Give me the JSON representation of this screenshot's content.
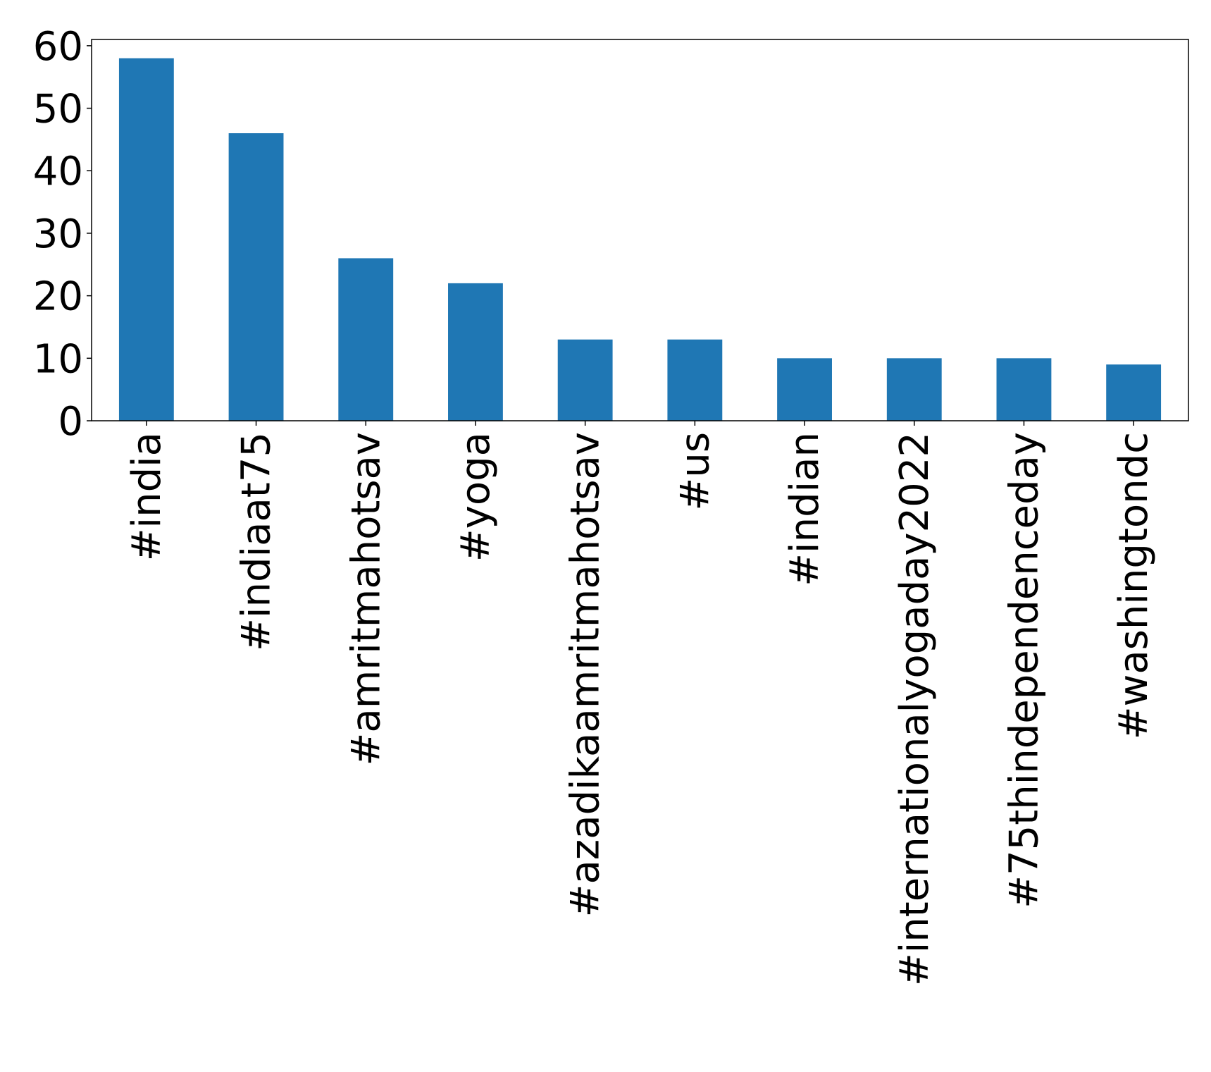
{
  "chart_data": {
    "type": "bar",
    "categories": [
      "#india",
      "#indiaat75",
      "#amritmahotsav",
      "#yoga",
      "#azadikaamritmahotsav",
      "#us",
      "#indian",
      "#internationalyogaday2022",
      "#75thindependenceday",
      "#washingtondc"
    ],
    "values": [
      58,
      46,
      26,
      22,
      13,
      13,
      10,
      10,
      10,
      9
    ],
    "ylim": [
      0,
      61
    ],
    "yticks": [
      0,
      10,
      20,
      30,
      40,
      50,
      60
    ],
    "title": "",
    "xlabel": "",
    "ylabel": "",
    "grid": false,
    "bar_color": "#1f77b4"
  }
}
